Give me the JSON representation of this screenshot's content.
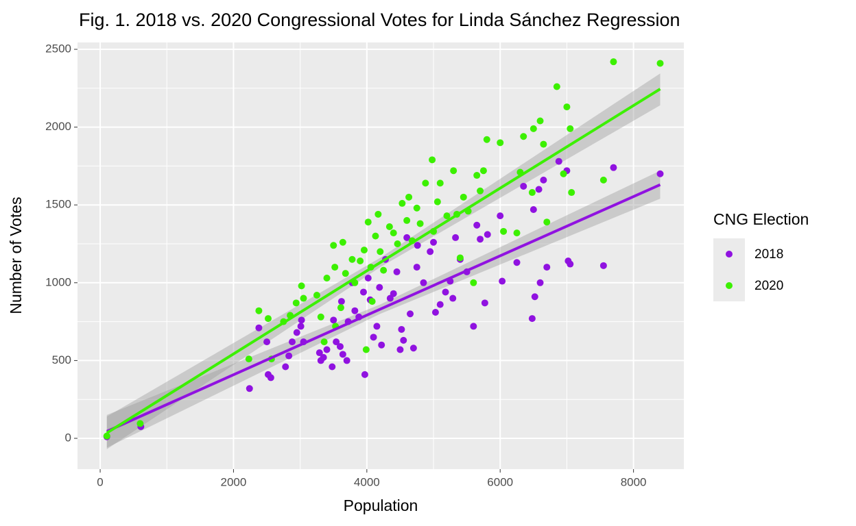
{
  "chart_data": {
    "type": "scatter",
    "title": "Fig. 1. 2018 vs. 2020 Congressional Votes for Linda Sánchez Regression",
    "x_label": "Population",
    "y_label": "Number of Votes",
    "legend_title": "CNG Election",
    "legend": "right",
    "grid": true,
    "xlim": [
      -340,
      8755
    ],
    "ylim": [
      -198,
      2544
    ],
    "xticks": [
      0,
      2000,
      4000,
      6000,
      8000
    ],
    "yticks": [
      0,
      500,
      1000,
      1500,
      2000,
      2500
    ],
    "x_minor_ticks": [
      1000,
      3000,
      5000,
      7000
    ],
    "y_minor_ticks": [
      250,
      750,
      1250,
      1750,
      2250
    ],
    "series": [
      {
        "name": "2018",
        "color": "#9012e0",
        "x": [
          100,
          610,
          2240,
          2380,
          2520,
          2560,
          2500,
          2780,
          2830,
          2880,
          2950,
          3010,
          3020,
          3050,
          3290,
          3310,
          3350,
          3400,
          3480,
          3500,
          3540,
          3600,
          3620,
          3640,
          3700,
          3720,
          3780,
          3820,
          3880,
          3950,
          3970,
          4020,
          4050,
          4100,
          4150,
          4190,
          4220,
          4280,
          4350,
          4400,
          4450,
          4500,
          4520,
          4550,
          4600,
          4650,
          4700,
          4750,
          4760,
          4850,
          4950,
          5000,
          5030,
          5100,
          5180,
          5250,
          5290,
          5330,
          5400,
          5500,
          5600,
          5650,
          5700,
          5770,
          5810,
          6000,
          6030,
          6250,
          6350,
          6480,
          6500,
          6520,
          6580,
          6600,
          6650,
          6700,
          6880,
          7000,
          7020,
          7050,
          7550,
          7700,
          8400
        ],
        "values": [
          10,
          75,
          320,
          710,
          410,
          390,
          620,
          460,
          530,
          620,
          680,
          720,
          760,
          620,
          550,
          500,
          520,
          570,
          460,
          760,
          620,
          590,
          880,
          540,
          500,
          750,
          1000,
          820,
          780,
          940,
          410,
          1030,
          890,
          650,
          720,
          970,
          600,
          1150,
          900,
          930,
          1070,
          570,
          700,
          630,
          1290,
          800,
          580,
          1100,
          1240,
          1000,
          1200,
          1260,
          810,
          860,
          940,
          1010,
          900,
          1290,
          1150,
          1070,
          720,
          1370,
          1280,
          870,
          1310,
          1430,
          1010,
          1130,
          1620,
          770,
          1470,
          910,
          1600,
          1000,
          1660,
          1100,
          1780,
          1720,
          1140,
          1120,
          1110,
          1740,
          1700
        ],
        "fit": {
          "x": [
            100,
            4200,
            8400
          ],
          "y": [
            45,
            830,
            1630
          ],
          "lower": [
            -60,
            800,
            1540
          ],
          "upper": [
            150,
            860,
            1720
          ]
        }
      },
      {
        "name": "2020",
        "color": "#3cf000",
        "x": [
          100,
          600,
          2230,
          2380,
          2520,
          2570,
          2750,
          2850,
          2940,
          3020,
          3050,
          3250,
          3310,
          3360,
          3400,
          3500,
          3520,
          3530,
          3610,
          3640,
          3680,
          3780,
          3820,
          3900,
          3960,
          3990,
          4020,
          4060,
          4080,
          4130,
          4170,
          4200,
          4250,
          4340,
          4400,
          4460,
          4530,
          4600,
          4630,
          4680,
          4750,
          4800,
          4880,
          4980,
          5000,
          5060,
          5100,
          5200,
          5300,
          5350,
          5400,
          5450,
          5520,
          5600,
          5650,
          5700,
          5750,
          5800,
          6000,
          6050,
          6250,
          6300,
          6350,
          6480,
          6500,
          6600,
          6650,
          6700,
          6850,
          6950,
          7000,
          7050,
          7070,
          7550,
          7700,
          8400
        ],
        "values": [
          15,
          95,
          510,
          820,
          770,
          510,
          750,
          790,
          870,
          980,
          900,
          920,
          780,
          620,
          1030,
          1240,
          1100,
          720,
          840,
          1260,
          1060,
          1150,
          1000,
          1140,
          1210,
          570,
          1390,
          1100,
          880,
          1300,
          1440,
          1200,
          1080,
          1360,
          1320,
          1250,
          1510,
          1400,
          1550,
          1270,
          1480,
          1380,
          1640,
          1790,
          1330,
          1520,
          1640,
          1430,
          1720,
          1440,
          1160,
          1550,
          1460,
          1000,
          1690,
          1590,
          1720,
          1920,
          1900,
          1330,
          1320,
          1710,
          1940,
          1580,
          1990,
          2040,
          1890,
          1390,
          2260,
          1700,
          2130,
          1990,
          1580,
          1660,
          2420,
          2410
        ],
        "fit": {
          "x": [
            100,
            4200,
            8400
          ],
          "y": [
            35,
            1130,
            2245
          ],
          "lower": [
            -70,
            1100,
            2140
          ],
          "upper": [
            140,
            1160,
            2345
          ]
        }
      }
    ]
  }
}
